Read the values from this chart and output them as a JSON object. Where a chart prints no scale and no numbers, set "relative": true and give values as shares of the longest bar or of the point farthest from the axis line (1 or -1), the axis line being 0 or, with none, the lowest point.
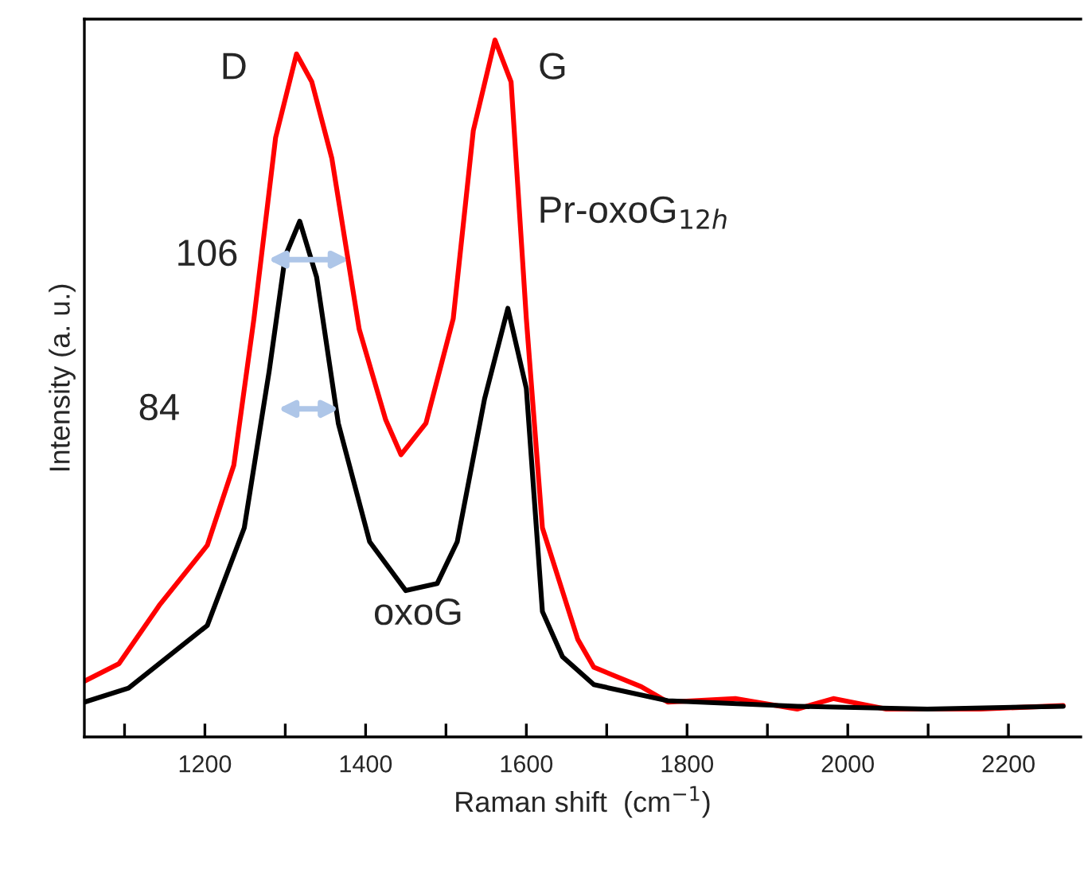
{
  "chart_data": {
    "type": "line",
    "relative": true,
    "xlabel": "Raman shift  (cm$^{−1}$)",
    "ylabel": "Intensity (a. u.)",
    "xlim": [
      1050,
      2290
    ],
    "xticks": [
      {
        "value": 1100,
        "label": null
      },
      1200,
      {
        "value": 1300,
        "label": null
      },
      1400,
      {
        "value": 1500,
        "label": null
      },
      1600,
      {
        "value": 1700,
        "label": null
      },
      1800,
      {
        "value": 1900,
        "label": null
      },
      2000,
      {
        "value": 2100,
        "label": null
      },
      2200
    ],
    "grid": false,
    "legend": false,
    "series": [
      {
        "color": "#ff0000",
        "x": [
          1050,
          1093,
          1144,
          1203,
          1236,
          1261,
          1288,
          1314,
          1333,
          1358,
          1392,
          1425,
          1444,
          1475,
          1509,
          1534,
          1561,
          1581,
          1600,
          1620,
          1664,
          1684,
          1743,
          1776,
          1860,
          1937,
          1982,
          2048,
          2165,
          2268
        ],
        "values": [
          0.08,
          0.105,
          0.19,
          0.275,
          0.39,
          0.6,
          0.86,
          0.98,
          0.94,
          0.83,
          0.585,
          0.455,
          0.405,
          0.45,
          0.6,
          0.87,
          1.0,
          0.94,
          0.6,
          0.3,
          0.14,
          0.1,
          0.072,
          0.05,
          0.055,
          0.04,
          0.055,
          0.04,
          0.04,
          0.045
        ]
      },
      {
        "color": "#000000",
        "x": [
          1050,
          1105,
          1203,
          1249,
          1280,
          1300,
          1318,
          1339,
          1366,
          1405,
          1450,
          1489,
          1514,
          1548,
          1577,
          1600,
          1620,
          1645,
          1684,
          1776,
          1937,
          2099,
          2268
        ],
        "values": [
          0.05,
          0.07,
          0.16,
          0.3,
          0.525,
          0.69,
          0.74,
          0.66,
          0.45,
          0.28,
          0.21,
          0.22,
          0.28,
          0.485,
          0.615,
          0.5,
          0.18,
          0.115,
          0.075,
          0.052,
          0.044,
          0.04,
          0.044
        ]
      }
    ],
    "annotations": [
      "D",
      "G",
      "Pr-oxoG$_{12h}$",
      "oxoG",
      "106",
      "84"
    ]
  }
}
